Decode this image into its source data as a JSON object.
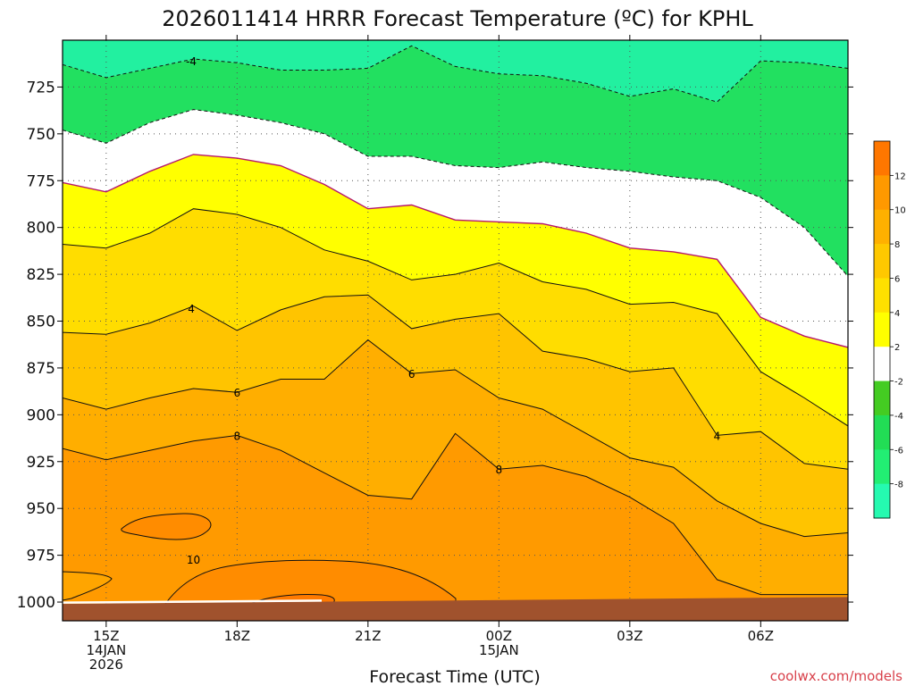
{
  "chart_data": {
    "type": "heatmap",
    "title": "2026011414 HRRR Forecast Temperature (ºC) for KPHL",
    "xlabel": "Forecast Time (UTC)",
    "ylabel": "",
    "credit": "coolwx.com/models",
    "ylim": [
      1010,
      700
    ],
    "xlim": [
      14.0,
      32.0
    ],
    "y_ticks": [
      725,
      750,
      775,
      800,
      825,
      850,
      875,
      900,
      925,
      950,
      975,
      1000
    ],
    "y_tick_labels": [
      "725",
      "750",
      "775",
      "800",
      "825",
      "850",
      "875",
      "900",
      "925",
      "950",
      "975",
      "1000"
    ],
    "x_ticks": [
      15,
      18,
      21,
      24,
      27,
      30
    ],
    "x_tick_labels": [
      [
        "15Z",
        "14JAN",
        "2026"
      ],
      [
        "18Z"
      ],
      [
        "21Z"
      ],
      [
        "00Z",
        "15JAN"
      ],
      [
        "03Z"
      ],
      [
        "06Z"
      ]
    ],
    "colorbar": {
      "levels": [
        -10,
        -8,
        -6,
        -4,
        -2,
        2,
        4,
        6,
        8,
        10,
        12,
        14
      ],
      "tick_labels": [
        "-8",
        "-6",
        "-4",
        "-2",
        "2",
        "4",
        "6",
        "8",
        "10",
        "12"
      ],
      "colors": [
        "#25fab0",
        "#22ee73",
        "#22dd55",
        "#44cc22",
        "#ffffff",
        "#ffff00",
        "#ffe000",
        "#ffc800",
        "#ffb000",
        "#ff9900",
        "#ff7700"
      ]
    },
    "contour_labels": [
      {
        "value": "-4",
        "x": 16.95,
        "p": 711
      },
      {
        "value": "4",
        "x": 16.95,
        "p": 843
      },
      {
        "value": "6",
        "x": 18.0,
        "p": 888
      },
      {
        "value": "6",
        "x": 22.0,
        "p": 878
      },
      {
        "value": "8",
        "x": 18.0,
        "p": 911
      },
      {
        "value": "8",
        "x": 24.0,
        "p": 929
      },
      {
        "value": "4",
        "x": 29.0,
        "p": 911
      },
      {
        "value": "10",
        "x": 17.0,
        "p": 977
      }
    ],
    "series": [
      {
        "name": "-4",
        "points": [
          [
            14.0,
            713
          ],
          [
            15.0,
            720
          ],
          [
            16.0,
            715
          ],
          [
            17.0,
            710
          ],
          [
            18.0,
            712
          ],
          [
            19.0,
            716
          ],
          [
            20.0,
            716
          ],
          [
            21.0,
            715
          ],
          [
            22.0,
            703
          ],
          [
            23.0,
            714
          ],
          [
            24.0,
            718
          ],
          [
            25.0,
            719
          ],
          [
            26.0,
            723
          ],
          [
            27.0,
            730
          ],
          [
            28.0,
            726
          ],
          [
            29.0,
            733
          ],
          [
            30.0,
            711
          ],
          [
            31.0,
            712
          ],
          [
            32.0,
            715
          ]
        ]
      },
      {
        "name": "-2",
        "points": [
          [
            14.0,
            748
          ],
          [
            15.0,
            755
          ],
          [
            16.0,
            744
          ],
          [
            17.0,
            737
          ],
          [
            18.0,
            740
          ],
          [
            19.0,
            744
          ],
          [
            20.0,
            750
          ],
          [
            21.0,
            762
          ],
          [
            22.0,
            762
          ],
          [
            23.0,
            767
          ],
          [
            24.0,
            768
          ],
          [
            25.0,
            765
          ],
          [
            26.0,
            768
          ],
          [
            27.0,
            770
          ],
          [
            28.0,
            773
          ],
          [
            29.0,
            775
          ],
          [
            30.0,
            784
          ],
          [
            31.0,
            800
          ],
          [
            32.0,
            826
          ]
        ]
      },
      {
        "name": "0",
        "points": [
          [
            14.0,
            776
          ],
          [
            15.0,
            781
          ],
          [
            16.0,
            770
          ],
          [
            17.0,
            761
          ],
          [
            18.0,
            763
          ],
          [
            19.0,
            767
          ],
          [
            20.0,
            777
          ],
          [
            21.0,
            790
          ],
          [
            22.0,
            788
          ],
          [
            23.0,
            796
          ],
          [
            24.0,
            797
          ],
          [
            25.0,
            798
          ],
          [
            26.0,
            803
          ],
          [
            27.0,
            811
          ],
          [
            28.0,
            813
          ],
          [
            29.0,
            817
          ],
          [
            30.0,
            848
          ],
          [
            31.0,
            858
          ],
          [
            32.0,
            864
          ]
        ]
      },
      {
        "name": "2",
        "points": [
          [
            14.0,
            809
          ],
          [
            15.0,
            811
          ],
          [
            16.0,
            803
          ],
          [
            17.0,
            790
          ],
          [
            18.0,
            793
          ],
          [
            19.0,
            800
          ],
          [
            20.0,
            812
          ],
          [
            21.0,
            818
          ],
          [
            22.0,
            828
          ],
          [
            23.0,
            825
          ],
          [
            24.0,
            819
          ],
          [
            25.0,
            829
          ],
          [
            26.0,
            833
          ],
          [
            27.0,
            841
          ],
          [
            28.0,
            840
          ],
          [
            29.0,
            846
          ],
          [
            30.0,
            877
          ],
          [
            31.0,
            891
          ],
          [
            32.0,
            906
          ]
        ]
      },
      {
        "name": "4",
        "points": [
          [
            14.0,
            856
          ],
          [
            15.0,
            857
          ],
          [
            16.0,
            851
          ],
          [
            17.0,
            842
          ],
          [
            18.0,
            855
          ],
          [
            19.0,
            844
          ],
          [
            20.0,
            837
          ],
          [
            21.0,
            836
          ],
          [
            22.0,
            854
          ],
          [
            23.0,
            849
          ],
          [
            24.0,
            846
          ],
          [
            25.0,
            866
          ],
          [
            26.0,
            870
          ],
          [
            27.0,
            877
          ],
          [
            28.0,
            875
          ],
          [
            29.0,
            911
          ],
          [
            30.0,
            909
          ],
          [
            31.0,
            926
          ],
          [
            32.0,
            929
          ]
        ]
      },
      {
        "name": "6",
        "points": [
          [
            14.0,
            891
          ],
          [
            15.0,
            897
          ],
          [
            16.0,
            891
          ],
          [
            17.0,
            886
          ],
          [
            18.0,
            888
          ],
          [
            19.0,
            881
          ],
          [
            20.0,
            881
          ],
          [
            21.0,
            860
          ],
          [
            22.0,
            878
          ],
          [
            23.0,
            876
          ],
          [
            24.0,
            891
          ],
          [
            25.0,
            897
          ],
          [
            26.0,
            910
          ],
          [
            27.0,
            923
          ],
          [
            28.0,
            928
          ],
          [
            29.0,
            946
          ],
          [
            30.0,
            958
          ],
          [
            31.0,
            965
          ],
          [
            32.0,
            963
          ]
        ]
      },
      {
        "name": "8",
        "points": [
          [
            14.0,
            918
          ],
          [
            15.0,
            924
          ],
          [
            16.0,
            919
          ],
          [
            17.0,
            914
          ],
          [
            18.0,
            911
          ],
          [
            19.0,
            919
          ],
          [
            20.0,
            931
          ],
          [
            21.0,
            943
          ],
          [
            22.0,
            945
          ],
          [
            23.0,
            910
          ],
          [
            24.0,
            929
          ],
          [
            25.0,
            927
          ],
          [
            26.0,
            933
          ],
          [
            27.0,
            944
          ],
          [
            28.0,
            958
          ],
          [
            29.0,
            988
          ],
          [
            30.0,
            996
          ],
          [
            31.0,
            996
          ],
          [
            32.0,
            996
          ]
        ]
      }
    ]
  }
}
